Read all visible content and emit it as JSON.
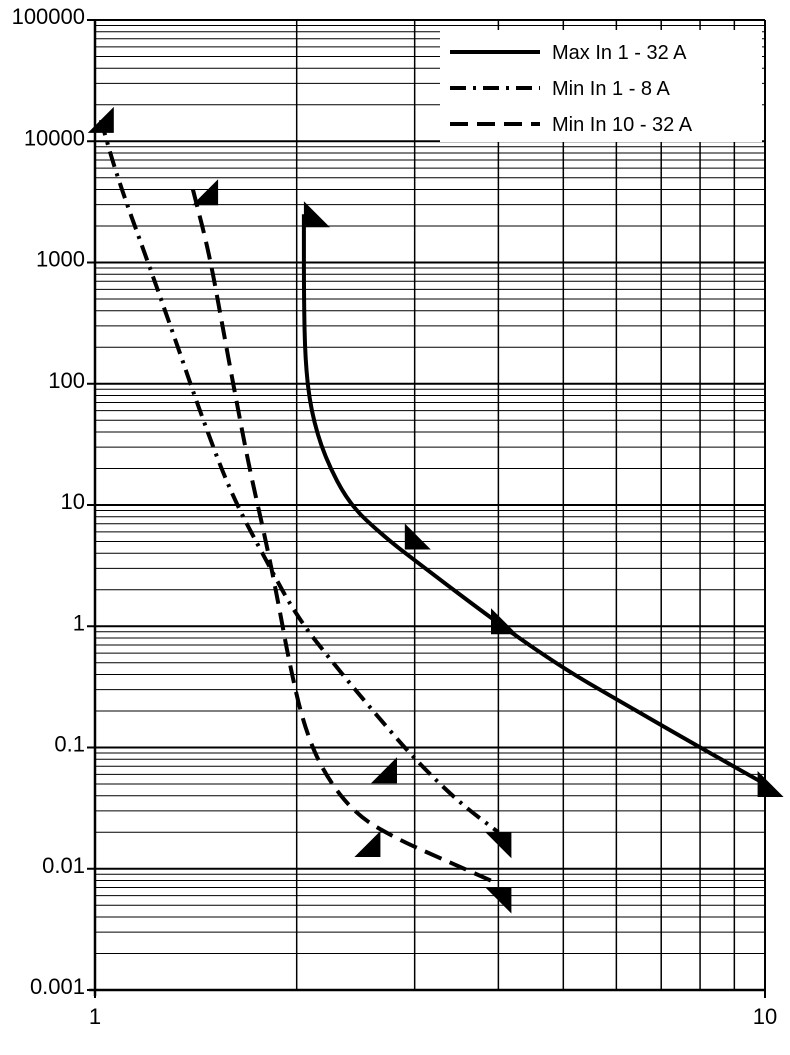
{
  "chart_data": {
    "type": "line",
    "x_scale": "log",
    "y_scale": "log",
    "xlim": [
      1,
      10
    ],
    "ylim": [
      0.001,
      100000
    ],
    "x_tick_labels": [
      {
        "value": 1,
        "label": "1"
      },
      {
        "value": 10,
        "label": "10"
      }
    ],
    "y_tick_labels": [
      {
        "value": 100000,
        "label": "100000"
      },
      {
        "value": 10000,
        "label": "10000"
      },
      {
        "value": 1000,
        "label": "1000"
      },
      {
        "value": 100,
        "label": "100"
      },
      {
        "value": 10,
        "label": "10"
      },
      {
        "value": 1,
        "label": "1"
      },
      {
        "value": 0.1,
        "label": "0.1"
      },
      {
        "value": 0.01,
        "label": "0.01"
      },
      {
        "value": 0.001,
        "label": "0.001"
      }
    ],
    "grid": true,
    "legend_position": "top-right",
    "series": [
      {
        "name": "Max In 1 - 32 A",
        "style": "solid",
        "color": "#000000",
        "points": [
          [
            2.05,
            2500
          ],
          [
            2.05,
            500
          ],
          [
            2.06,
            150
          ],
          [
            2.1,
            60
          ],
          [
            2.2,
            25
          ],
          [
            2.4,
            10
          ],
          [
            2.7,
            5.5
          ],
          [
            3,
            3.5
          ],
          [
            4,
            1.05
          ],
          [
            5,
            0.45
          ],
          [
            6,
            0.25
          ],
          [
            8,
            0.1
          ],
          [
            10,
            0.05
          ]
        ]
      },
      {
        "name": "Min In 1 - 8 A",
        "style": "dashdot",
        "color": "#000000",
        "points": [
          [
            1.02,
            15000
          ],
          [
            1.08,
            5000
          ],
          [
            1.2,
            1000
          ],
          [
            1.33,
            200
          ],
          [
            1.45,
            50
          ],
          [
            1.6,
            12
          ],
          [
            1.8,
            3.5
          ],
          [
            2,
            1.2
          ],
          [
            2.3,
            0.45
          ],
          [
            2.6,
            0.2
          ],
          [
            3,
            0.08
          ],
          [
            3.5,
            0.035
          ],
          [
            4,
            0.02
          ]
        ]
      },
      {
        "name": "Min In 10 - 32 A",
        "style": "dashed",
        "color": "#000000",
        "points": [
          [
            1.4,
            4000
          ],
          [
            1.48,
            1200
          ],
          [
            1.55,
            300
          ],
          [
            1.62,
            80
          ],
          [
            1.7,
            20
          ],
          [
            1.8,
            5
          ],
          [
            1.88,
            1.5
          ],
          [
            1.95,
            0.5
          ],
          [
            2.05,
            0.15
          ],
          [
            2.2,
            0.06
          ],
          [
            2.45,
            0.028
          ],
          [
            2.8,
            0.018
          ],
          [
            3.3,
            0.012
          ],
          [
            4,
            0.0075
          ]
        ]
      }
    ],
    "markers": [
      {
        "series": "Max In 1 - 32 A",
        "x": 2.05,
        "y": 2500,
        "dir": "right"
      },
      {
        "series": "Max In 1 - 32 A",
        "x": 2.9,
        "y": 5.5,
        "dir": "right"
      },
      {
        "series": "Max In 1 - 32 A",
        "x": 3.9,
        "y": 1.1,
        "dir": "right"
      },
      {
        "series": "Max In 1 - 32 A",
        "x": 9.75,
        "y": 0.05,
        "dir": "right"
      },
      {
        "series": "Min In 1 - 8 A",
        "x": 1.02,
        "y": 15000,
        "dir": "left"
      },
      {
        "series": "Min In 1 - 8 A",
        "x": 2.7,
        "y": 0.065,
        "dir": "left"
      },
      {
        "series": "Min In 1 - 8 A",
        "x": 4,
        "y": 0.02,
        "dir": "down"
      },
      {
        "series": "Min In 10 - 32 A",
        "x": 1.46,
        "y": 3800,
        "dir": "left"
      },
      {
        "series": "Min In 10 - 32 A",
        "x": 2.55,
        "y": 0.016,
        "dir": "left"
      },
      {
        "series": "Min In 10 - 32 A",
        "x": 4,
        "y": 0.007,
        "dir": "down"
      }
    ]
  }
}
